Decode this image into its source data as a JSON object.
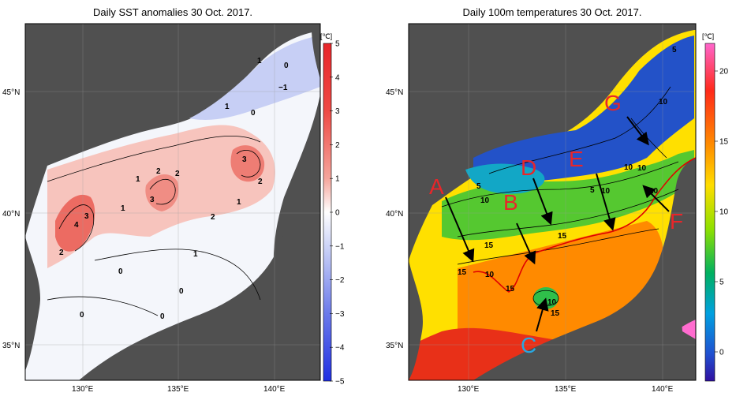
{
  "left_map": {
    "title": "Daily SST anomalies 30 Oct. 2017.",
    "colorbar": {
      "unit": "[℃]",
      "ticks": [
        "5",
        "4",
        "3",
        "2",
        "1",
        "0",
        "−1",
        "−2",
        "−3",
        "−4",
        "−5"
      ],
      "colors_top_to_bottom": [
        "#e8262a",
        "#ee4a45",
        "#f27a72",
        "#f5a59c",
        "#f8cfc8",
        "#ffffff",
        "#ffffff",
        "#cdd4f7",
        "#9ea9f1",
        "#6b7aea",
        "#1f2fe2"
      ]
    },
    "lat_labels": [
      "45°N",
      "40°N",
      "35°N"
    ],
    "lon_labels": [
      "130°E",
      "135°E",
      "140°E"
    ],
    "contour_labels": [
      "1",
      "0",
      "−1",
      "1",
      "0",
      "3",
      "2",
      "2",
      "1",
      "3",
      "2",
      "1",
      "2",
      "1",
      "3",
      "4",
      "2",
      "1",
      "0",
      "0",
      "0",
      "0"
    ]
  },
  "right_map": {
    "title": "Daily 100m temperatures 30 Oct. 2017.",
    "colorbar": {
      "unit": "[℃]",
      "ticks": [
        "20",
        "15",
        "10",
        "5",
        "0"
      ],
      "colors_top_to_bottom": [
        "#ff66cc",
        "#ff2a1a",
        "#ff8c00",
        "#ffdd00",
        "#e6f000",
        "#8ee000",
        "#22c030",
        "#00b0a0",
        "#00a0e0",
        "#2060d0",
        "#3010a0"
      ]
    },
    "lat_labels": [
      "45°N",
      "40°N",
      "35°N"
    ],
    "lon_labels": [
      "130°E",
      "135°E",
      "140°E"
    ],
    "contour_labels": [
      "5",
      "10",
      "10",
      "5",
      "10",
      "15",
      "15",
      "15",
      "10",
      "15",
      "10",
      "15",
      "10",
      "10",
      "10",
      "5"
    ],
    "annotations": [
      {
        "letter": "A",
        "color": "#e8262a"
      },
      {
        "letter": "B",
        "color": "#e8262a"
      },
      {
        "letter": "C",
        "color": "#29a7e0"
      },
      {
        "letter": "D",
        "color": "#e8262a"
      },
      {
        "letter": "E",
        "color": "#e8262a"
      },
      {
        "letter": "F",
        "color": "#e8262a"
      },
      {
        "letter": "G",
        "color": "#e8262a"
      }
    ]
  },
  "colors": {
    "land": "#505050",
    "frame": "#000000",
    "front_line": "#e00000"
  }
}
